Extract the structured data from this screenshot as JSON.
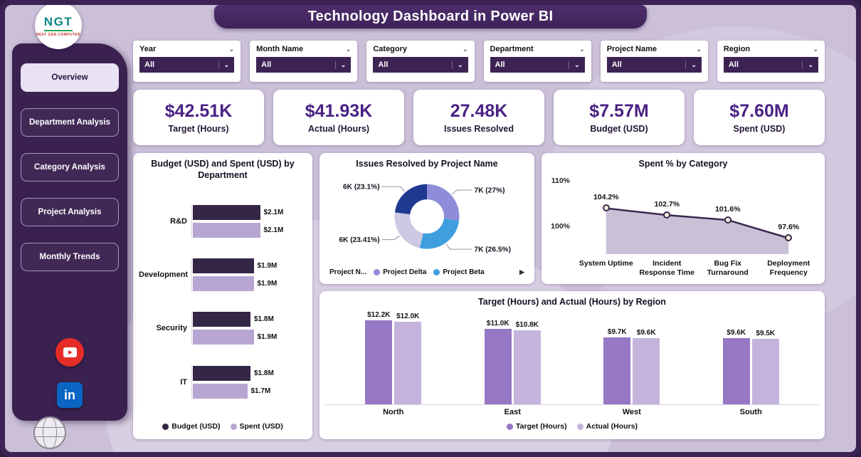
{
  "app": {
    "title": "Technology Dashboard in Power BI"
  },
  "logo": {
    "text": "NGT",
    "subtext": "NEXT GEN COMPUTER"
  },
  "sidebar": {
    "items": [
      {
        "label": "Overview",
        "active": true
      },
      {
        "label": "Department Analysis",
        "active": false
      },
      {
        "label": "Category Analysis",
        "active": false
      },
      {
        "label": "Project Analysis",
        "active": false
      },
      {
        "label": "Monthly Trends",
        "active": false
      }
    ],
    "social": {
      "linkedin": "in"
    }
  },
  "filters": [
    {
      "label": "Year",
      "value": "All"
    },
    {
      "label": "Month Name",
      "value": "All"
    },
    {
      "label": "Category",
      "value": "All"
    },
    {
      "label": "Department",
      "value": "All"
    },
    {
      "label": "Project Name",
      "value": "All"
    },
    {
      "label": "Region",
      "value": "All"
    }
  ],
  "kpis": [
    {
      "value": "$42.51K",
      "label": "Target (Hours)"
    },
    {
      "value": "$41.93K",
      "label": "Actual (Hours)"
    },
    {
      "value": "27.48K",
      "label": "Issues Resolved"
    },
    {
      "value": "$7.57M",
      "label": "Budget (USD)"
    },
    {
      "value": "$7.60M",
      "label": "Spent (USD)"
    }
  ],
  "chart_data": [
    {
      "id": "dept-budget-spent",
      "type": "bar",
      "orientation": "horizontal",
      "title": "Budget (USD) and Spent (USD) by Department",
      "categories": [
        "R&D",
        "Development",
        "Security",
        "IT"
      ],
      "series": [
        {
          "name": "Budget (USD)",
          "color": "#342645",
          "values": [
            2.1,
            1.9,
            1.8,
            1.8
          ],
          "labels": [
            "$2.1M",
            "$1.9M",
            "$1.8M",
            "$1.8M"
          ]
        },
        {
          "name": "Spent (USD)",
          "color": "#b7a6d2",
          "values": [
            2.1,
            1.9,
            1.9,
            1.7
          ],
          "labels": [
            "$2.1M",
            "$1.9M",
            "$1.9M",
            "$1.7M"
          ]
        }
      ],
      "xlim": [
        0,
        2.4
      ]
    },
    {
      "id": "issues-by-project",
      "type": "pie",
      "title": "Issues Resolved by Project Name",
      "slices": [
        {
          "name": "Project Delta",
          "label": "7K (27%)",
          "pct": 27,
          "color": "#8f8cd9"
        },
        {
          "name": "Project Beta",
          "label": "7K (26.5%)",
          "pct": 26.5,
          "color": "#3f9ede"
        },
        {
          "label": "6K (23.41%)",
          "pct": 23.41,
          "color": "#cdc8e4"
        },
        {
          "label": "6K (23.1%)",
          "pct": 23.1,
          "color": "#1e3a8f"
        }
      ],
      "legend": {
        "title": "Project N...",
        "items": [
          {
            "label": "Project Delta",
            "color": "#8f8cd9"
          },
          {
            "label": "Project Beta",
            "color": "#3f9ede"
          }
        ],
        "more_icon": "▶"
      }
    },
    {
      "id": "spent-pct-category",
      "type": "area",
      "title": "Spent % by Category",
      "categories": [
        "System Uptime",
        "Incident Response Time",
        "Bug Fix Turnaround",
        "Deployment Frequency"
      ],
      "values": [
        104.2,
        102.7,
        101.6,
        97.6
      ],
      "labels": [
        "104.2%",
        "102.7%",
        "101.6%",
        "97.6%"
      ],
      "yticks": [
        {
          "label": "110%",
          "value": 110
        },
        {
          "label": "100%",
          "value": 100
        }
      ],
      "ylim": [
        94,
        112
      ],
      "line_color": "#3a2950",
      "area_color": "#c9c1d5",
      "marker_color": "#f6f0da"
    },
    {
      "id": "target-actual-region",
      "type": "column",
      "title": "Target (Hours) and Actual (Hours) by Region",
      "categories": [
        "North",
        "East",
        "West",
        "South"
      ],
      "series": [
        {
          "name": "Target (Hours)",
          "color": "#9678c5",
          "values": [
            12.2,
            11.0,
            9.7,
            9.6
          ],
          "labels": [
            "$12.2K",
            "$11.0K",
            "$9.7K",
            "$9.6K"
          ]
        },
        {
          "name": "Actual (Hours)",
          "color": "#c4b4dc",
          "values": [
            12.0,
            10.8,
            9.6,
            9.5
          ],
          "labels": [
            "$12.0K",
            "$10.8K",
            "$9.6K",
            "$9.5K"
          ]
        }
      ],
      "ylim": [
        0,
        14
      ]
    }
  ]
}
